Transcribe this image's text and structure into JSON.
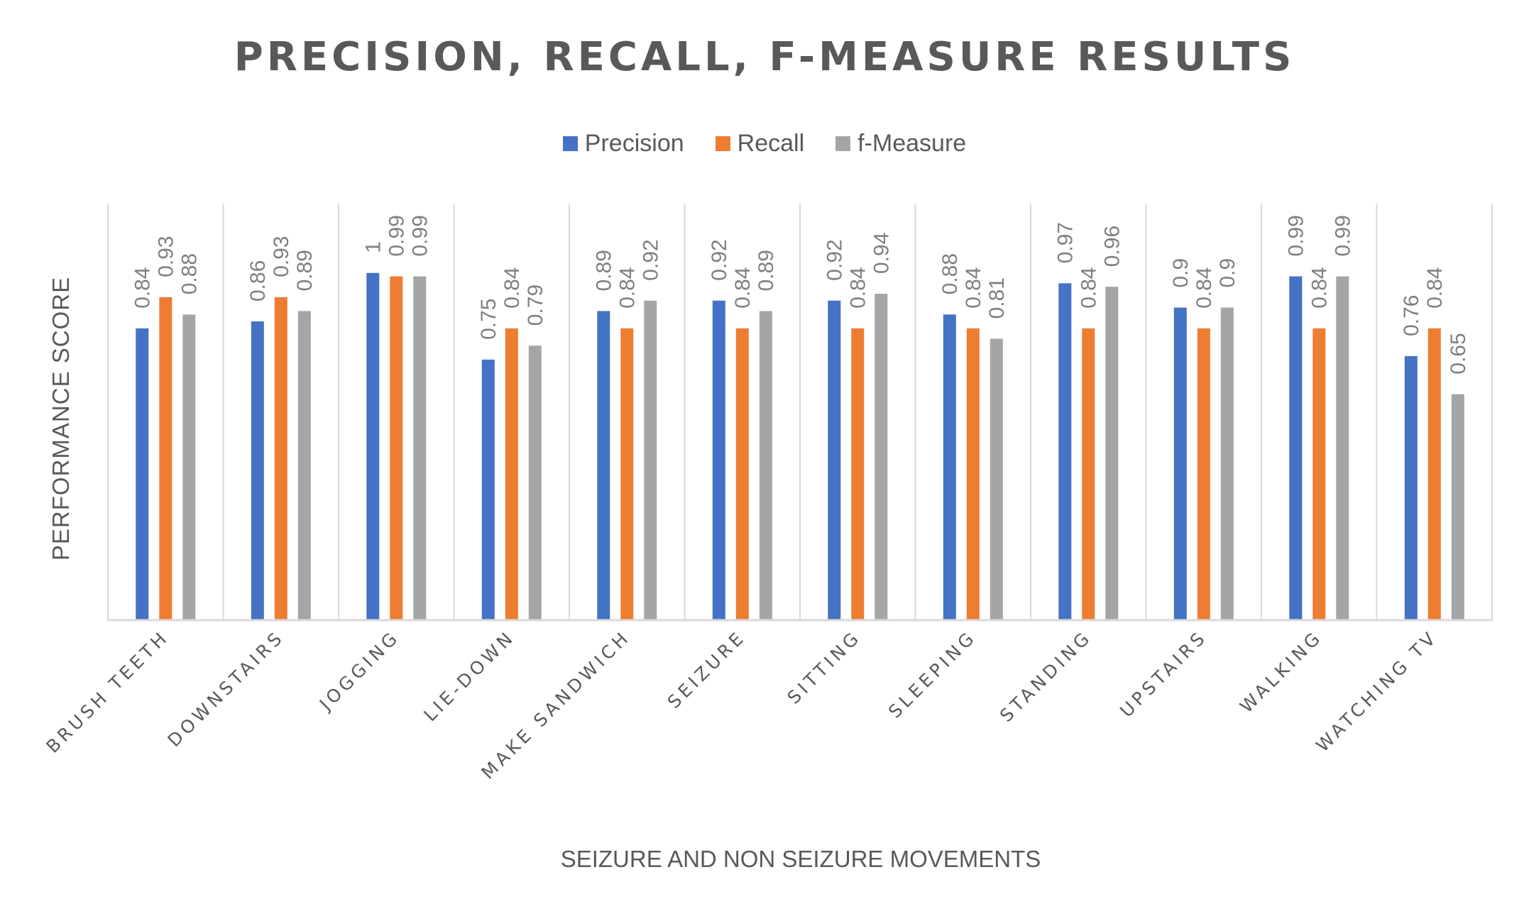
{
  "colors": {
    "precision": "#4472C4",
    "recall": "#ED7D31",
    "f_measure": "#A5A5A5",
    "gridline": "#D9D9D9",
    "text": "#595959",
    "data_label": "#7F7F7F"
  },
  "chart_data": {
    "type": "bar",
    "title": "PRECISION, RECALL, F-MEASURE RESULTS",
    "xlabel": "SEIZURE AND NON SEIZURE MOVEMENTS",
    "ylabel": "PERFORMANCE SCORE",
    "ylim": [
      0,
      1.2
    ],
    "grid": "vertical category separators",
    "legend_position": "top",
    "categories": [
      "BRUSH TEETH",
      "DOWNSTAIRS",
      "JOGGING",
      "LIE-DOWN",
      "MAKE SANDWICH",
      "SEIZURE",
      "SITTING",
      "SLEEPING",
      "STANDING",
      "UPSTAIRS",
      "WALKING",
      "WATCHING TV"
    ],
    "series": [
      {
        "name": "Precision",
        "color": "#4472C4",
        "values": [
          0.84,
          0.86,
          1,
          0.75,
          0.89,
          0.92,
          0.92,
          0.88,
          0.97,
          0.9,
          0.99,
          0.76
        ]
      },
      {
        "name": "Recall",
        "color": "#ED7D31",
        "values": [
          0.93,
          0.93,
          0.99,
          0.84,
          0.84,
          0.84,
          0.84,
          0.84,
          0.84,
          0.84,
          0.84,
          0.84
        ]
      },
      {
        "name": "f-Measure",
        "color": "#A5A5A5",
        "values": [
          0.88,
          0.89,
          0.99,
          0.79,
          0.92,
          0.89,
          0.94,
          0.81,
          0.96,
          0.9,
          0.99,
          0.65
        ]
      }
    ]
  }
}
